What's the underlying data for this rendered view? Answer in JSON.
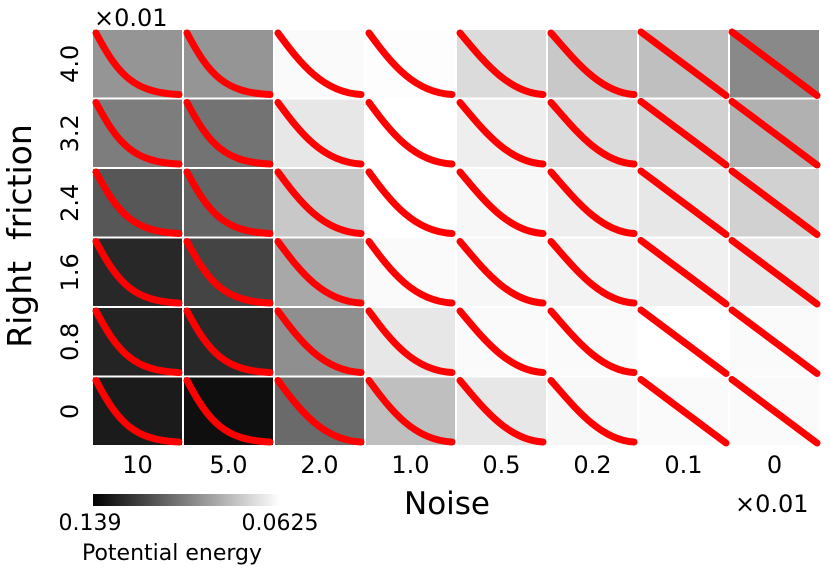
{
  "chart_data": {
    "type": "heatmap",
    "xlabel": "Noise",
    "ylabel": "Right  friction",
    "x_multiplier": "×0.01",
    "y_multiplier": "×0.01",
    "x_tick_labels": [
      "10",
      "5.0",
      "2.0",
      "1.0",
      "0.5",
      "0.2",
      "0.1",
      "0"
    ],
    "y_tick_labels": [
      "4.0",
      "3.2",
      "2.4",
      "1.6",
      "0.8",
      "0"
    ],
    "colorbar": {
      "label": "Potential energy",
      "min_label": "0.139",
      "max_label": "0.0625",
      "min_value": 0.139,
      "max_value": 0.0625
    },
    "cells": [
      [
        0.096,
        0.096,
        0.064,
        0.063,
        0.074,
        0.08,
        0.083,
        0.1
      ],
      [
        0.104,
        0.107,
        0.07,
        0.0625,
        0.068,
        0.074,
        0.077,
        0.087
      ],
      [
        0.116,
        0.112,
        0.08,
        0.0625,
        0.065,
        0.068,
        0.07,
        0.077
      ],
      [
        0.131,
        0.122,
        0.09,
        0.064,
        0.065,
        0.066,
        0.067,
        0.07
      ],
      [
        0.132,
        0.131,
        0.098,
        0.07,
        0.064,
        0.064,
        0.0625,
        0.064
      ],
      [
        0.135,
        0.139,
        0.11,
        0.083,
        0.07,
        0.065,
        0.064,
        0.064
      ]
    ],
    "curves": {
      "color": "#ff0000",
      "profile_by_column": [
        [
          0.0,
          0.0,
          0.02,
          0.06,
          0.25,
          0.55
        ],
        [
          0.0,
          0.0,
          0.02,
          0.06,
          0.25,
          0.55
        ],
        [
          0.0,
          0.0,
          0.0,
          0.02,
          0.1,
          0.2
        ],
        [
          0.0,
          0.0,
          0.0,
          0.02,
          0.1,
          0.2
        ],
        [
          0.0,
          0.0,
          0.0,
          0.0,
          0.04,
          0.08
        ],
        [
          0.0,
          0.0,
          0.0,
          0.0,
          0.02,
          0.04
        ],
        [
          0.0,
          0.0,
          0.0,
          0.0,
          0.0,
          0.0
        ],
        [
          0.0,
          0.0,
          0.0,
          0.0,
          0.0,
          0.0
        ]
      ]
    }
  }
}
